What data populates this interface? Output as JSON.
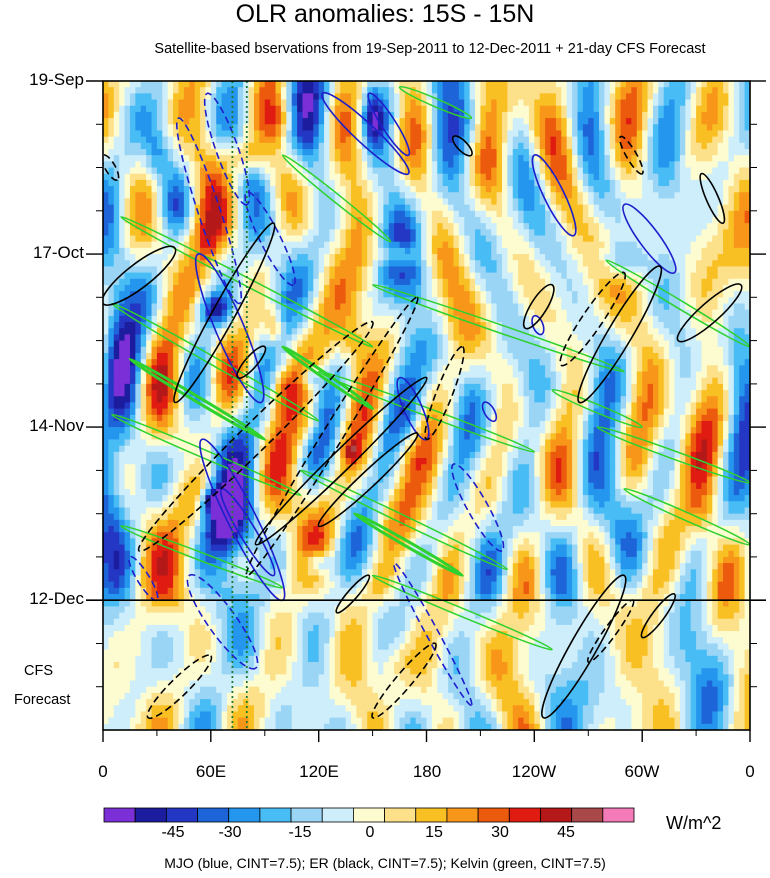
{
  "chart_data": {
    "type": "heatmap",
    "title": "OLR anomalies: 15S - 15N",
    "subtitle": "Satellite-based bservations from 19-Sep-2011 to 12-Dec-2011 + 21-day CFS Forecast",
    "y_tick_labels": [
      "19-Sep",
      "17-Oct",
      "14-Nov",
      "12-Dec"
    ],
    "y_tick_days": [
      0,
      28,
      56,
      84
    ],
    "observation_end_day": 84,
    "forecast_days": 21,
    "forecast_label_line1": "CFS",
    "forecast_label_line2": "Forecast",
    "x_tick_labels": [
      "0",
      "60E",
      "120E",
      "180",
      "120W",
      "60W",
      "0"
    ],
    "x_tick_lons": [
      0,
      60,
      120,
      180,
      240,
      300,
      360
    ],
    "xlim": [
      0,
      360
    ],
    "colorbar": {
      "levels": [
        -60,
        -52.5,
        -45,
        -37.5,
        -30,
        -22.5,
        -15,
        -7.5,
        0,
        7.5,
        15,
        22.5,
        30,
        37.5,
        45,
        52.5,
        60
      ],
      "colors": [
        "#7b2fd6",
        "#1c1c9e",
        "#2436c4",
        "#1e64d9",
        "#2596ee",
        "#48bdf5",
        "#9bd5f5",
        "#cdeefa",
        "#fcfcd0",
        "#fce08a",
        "#f9c024",
        "#f8961a",
        "#ec5a0e",
        "#e01c12",
        "#b41818",
        "#a84848",
        "#f57ab8"
      ],
      "tick_labels": [
        "-45",
        "-30",
        "-15",
        "0",
        "15",
        "30",
        "45"
      ],
      "tick_values": [
        -45,
        -30,
        -15,
        0,
        15,
        30,
        45
      ],
      "units": "W/m^2"
    },
    "reference_lines_lon": [
      72,
      80
    ],
    "contour_legend": "MJO (blue, CINT=7.5); ER (black, CINT=7.5); Kelvin (green, CINT=7.5)",
    "contours": {
      "kelvin_color": "#2ed12e",
      "mjo_color": "#1e1ecc",
      "er_color": "#000000"
    }
  }
}
